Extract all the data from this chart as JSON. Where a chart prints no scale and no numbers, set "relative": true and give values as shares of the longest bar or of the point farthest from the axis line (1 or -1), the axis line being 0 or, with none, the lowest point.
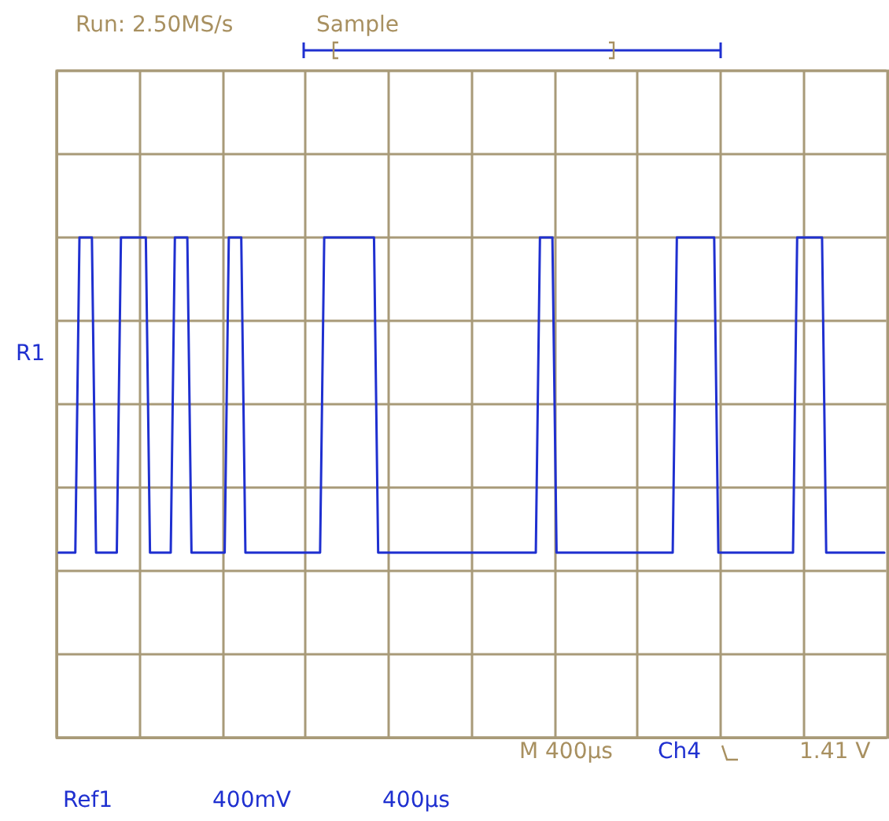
{
  "chart_data": {
    "type": "line",
    "relative": true,
    "grid": true,
    "annotations": [
      "Run: 2.50MS/s",
      "Sample",
      "R1",
      "M 400µs",
      "Ch4",
      "1.41 V",
      "Ref1",
      "400mV",
      "400µs"
    ],
    "categories": [
      null,
      null,
      null,
      null,
      null,
      null,
      null,
      null,
      null,
      null,
      null,
      null,
      null,
      null,
      null,
      null,
      null,
      null,
      null,
      null,
      null,
      null,
      null,
      null,
      null,
      null,
      null,
      null,
      null,
      null,
      null,
      null,
      null,
      null,
      null,
      null,
      null,
      null,
      null,
      null,
      null,
      null,
      null,
      null,
      null,
      null,
      null,
      null,
      null,
      null,
      null,
      null,
      null,
      null,
      null,
      null,
      null,
      null,
      null,
      null,
      null,
      null,
      null,
      null,
      null,
      null,
      null,
      null,
      null,
      null,
      null,
      null,
      null,
      null,
      null,
      null,
      null,
      null,
      null,
      null,
      null,
      null,
      null,
      null,
      null,
      null,
      null,
      null,
      null,
      null,
      null,
      null,
      null,
      null,
      null,
      null,
      null,
      null,
      null,
      null,
      null,
      null,
      null,
      null,
      null,
      null,
      null,
      null,
      null,
      null,
      null,
      null,
      null,
      null,
      null,
      null,
      null,
      null,
      null,
      null,
      null,
      null,
      null,
      null,
      null,
      null,
      null,
      null,
      null,
      null,
      null,
      null,
      null,
      null,
      null,
      null,
      null,
      null,
      null,
      null,
      null,
      null,
      null,
      null,
      null,
      null,
      null,
      null,
      null,
      null,
      null,
      null,
      null,
      null,
      null,
      null,
      null,
      null,
      null,
      null,
      null,
      null,
      null,
      null,
      null,
      null,
      null,
      null,
      null,
      null,
      null,
      null,
      null,
      null,
      null,
      null,
      null,
      null,
      null,
      null,
      null,
      null,
      null,
      null,
      null,
      null,
      null,
      null,
      null,
      null,
      null,
      null,
      null,
      null,
      null,
      null,
      null,
      null,
      null,
      null
    ],
    "series": [
      {
        "color": "#1f30d0",
        "values": [
          0.37,
          0.37,
          0.37,
          0.37,
          0.37,
          1,
          1,
          1,
          1,
          0.37,
          0.37,
          0.37,
          0.37,
          0.37,
          0.37,
          1,
          1,
          1,
          1,
          1,
          1,
          1,
          0.37,
          0.37,
          0.37,
          0.37,
          0.37,
          0.37,
          1,
          1,
          1,
          1,
          0.37,
          0.37,
          0.37,
          0.37,
          0.37,
          0.37,
          0.37,
          0.37,
          0.37,
          1,
          1,
          1,
          1,
          0.37,
          0.37,
          0.37,
          0.37,
          0.37,
          0.37,
          0.37,
          0.37,
          0.37,
          0.37,
          0.37,
          0.37,
          0.37,
          0.37,
          0.37,
          0.37,
          0.37,
          0.37,
          0.37,
          1,
          1,
          1,
          1,
          1,
          1,
          1,
          1,
          1,
          1,
          1,
          1,
          1,
          0.37,
          0.37,
          0.37,
          0.37,
          0.37,
          0.37,
          0.37,
          0.37,
          0.37,
          0.37,
          0.37,
          0.37,
          0.37,
          0.37,
          0.37,
          0.37,
          0.37,
          0.37,
          0.37,
          0.37,
          0.37,
          0.37,
          0.37,
          0.37,
          0.37,
          0.37,
          0.37,
          0.37,
          0.37,
          0.37,
          0.37,
          0.37,
          0.37,
          0.37,
          0.37,
          0.37,
          0.37,
          0.37,
          0.37,
          1,
          1,
          1,
          1,
          0.37,
          0.37,
          0.37,
          0.37,
          0.37,
          0.37,
          0.37,
          0.37,
          0.37,
          0.37,
          0.37,
          0.37,
          0.37,
          0.37,
          0.37,
          0.37,
          0.37,
          0.37,
          0.37,
          0.37,
          0.37,
          0.37,
          0.37,
          0.37,
          0.37,
          0.37,
          0.37,
          0.37,
          0.37,
          1,
          1,
          1,
          1,
          1,
          1,
          1,
          1,
          1,
          1,
          0.37,
          0.37,
          0.37,
          0.37,
          0.37,
          0.37,
          0.37,
          0.37,
          0.37,
          0.37,
          0.37,
          0.37,
          0.37,
          0.37,
          0.37,
          0.37,
          0.37,
          0.37,
          0.37,
          1,
          1,
          1,
          1,
          1,
          1,
          1,
          0.37,
          0.37,
          0.37,
          0.37,
          0.37,
          0.37,
          0.37,
          0.37,
          0.37,
          0.37,
          0.37,
          0.37,
          0.37,
          0.37,
          0.37
        ]
      }
    ]
  }
}
